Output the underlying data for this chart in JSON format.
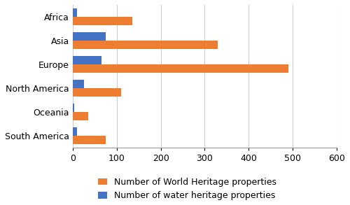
{
  "categories": [
    "Africa",
    "Asia",
    "Europe",
    "North America",
    "Oceania",
    "South America"
  ],
  "world_heritage": [
    135,
    330,
    490,
    110,
    35,
    75
  ],
  "water_heritage": [
    10,
    75,
    65,
    25,
    3,
    10
  ],
  "orange_color": "#ED7D31",
  "blue_color": "#4472C4",
  "legend_labels": [
    "Number of World Heritage properties",
    "Number of water heritage properties"
  ],
  "xlim": [
    0,
    600
  ],
  "xticks": [
    0,
    100,
    200,
    300,
    400,
    500,
    600
  ],
  "bar_height": 0.35,
  "grid_color": "#CCCCCC",
  "background_color": "#FFFFFF",
  "tick_fontsize": 9,
  "legend_fontsize": 9,
  "ylabel_fontsize": 10
}
